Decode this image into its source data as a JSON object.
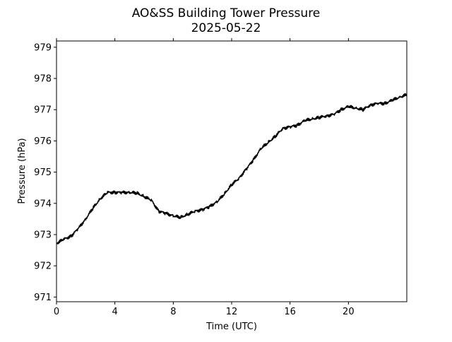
{
  "chart_data": {
    "type": "line",
    "title": "AO&SS Building Tower Pressure",
    "subtitle": "2025-05-22",
    "xlabel": "Time (UTC)",
    "ylabel": "Pressure (hPa)",
    "xlim": [
      0,
      24
    ],
    "ylim": [
      970.85,
      979.2
    ],
    "xticks": [
      0,
      4,
      8,
      12,
      16,
      20
    ],
    "yticks": [
      971,
      972,
      973,
      974,
      975,
      976,
      977,
      978,
      979
    ],
    "grid": false,
    "legend": "none",
    "series": [
      {
        "color": "#000000",
        "x": [
          0,
          0.5,
          1.0,
          1.5,
          2.0,
          2.5,
          3.0,
          3.5,
          4.0,
          4.5,
          5.0,
          5.5,
          6.0,
          6.5,
          7.0,
          7.5,
          8.0,
          8.5,
          9.0,
          9.5,
          10.0,
          10.5,
          11.0,
          11.5,
          12.0,
          12.5,
          13.0,
          13.5,
          14.0,
          14.5,
          15.0,
          15.5,
          16.0,
          16.5,
          17.0,
          17.5,
          18.0,
          18.5,
          19.0,
          19.5,
          20.0,
          20.5,
          21.0,
          21.5,
          22.0,
          22.5,
          23.0,
          23.5,
          24.0
        ],
        "y": [
          972.72,
          972.85,
          972.95,
          973.2,
          973.5,
          973.85,
          974.15,
          974.35,
          974.35,
          974.35,
          974.35,
          974.33,
          974.22,
          974.1,
          973.75,
          973.68,
          973.6,
          973.55,
          973.65,
          973.75,
          973.8,
          973.9,
          974.05,
          974.3,
          974.6,
          974.8,
          975.1,
          975.4,
          975.75,
          975.95,
          976.15,
          976.4,
          976.45,
          976.5,
          976.65,
          976.7,
          976.75,
          976.8,
          976.85,
          977.0,
          977.1,
          977.05,
          977.0,
          977.15,
          977.2,
          977.2,
          977.3,
          977.4,
          977.48
        ]
      }
    ]
  }
}
